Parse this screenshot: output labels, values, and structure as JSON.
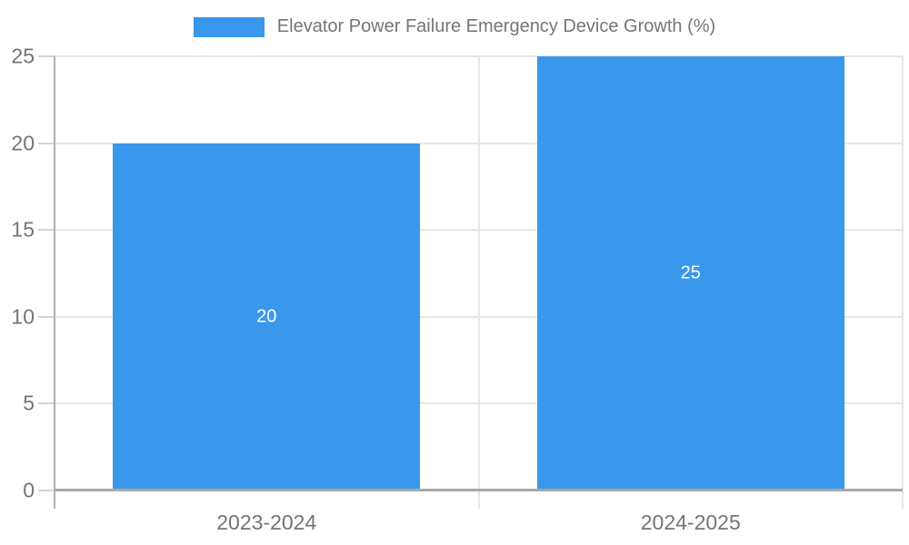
{
  "chart_data": {
    "type": "bar",
    "title": "Elevator Power Failure Emergency Device Growth (%)",
    "categories": [
      "2023-2024",
      "2024-2025"
    ],
    "values": [
      20,
      25
    ],
    "data_labels": [
      "20",
      "25"
    ],
    "yticks": [
      0,
      5,
      10,
      15,
      20,
      25
    ],
    "ylim": [
      0,
      25
    ],
    "xlabel": "",
    "ylabel": "",
    "grid": true,
    "legend_position": "top-center",
    "colors": {
      "bar": "#3998ec",
      "bar_value_text": "#ffffff",
      "axis_text": "#757575",
      "gridline": "#e6e6e6",
      "axis_line": "#a8a8a8"
    }
  }
}
